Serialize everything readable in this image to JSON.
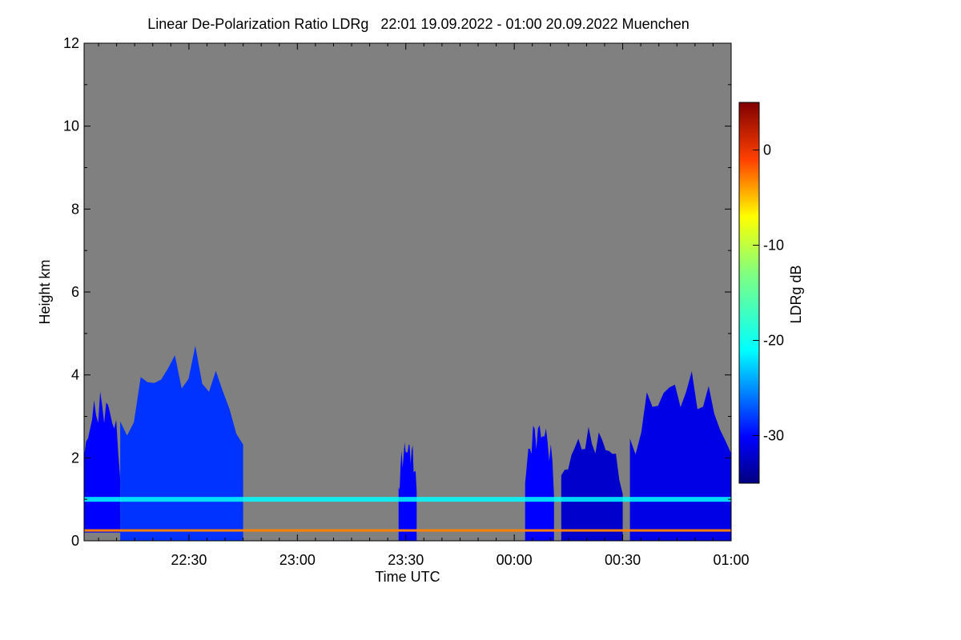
{
  "chart_data": {
    "type": "heatmap",
    "title": "Linear De-Polarization Ratio LDRg   22:01 19.09.2022 - 01:00 20.09.2022 Muenchen",
    "xlabel": "Time UTC",
    "ylabel": "Height km",
    "colorbar_label": "LDRg dB",
    "x_range_minutes": [
      -29,
      150
    ],
    "y_range_km": [
      0,
      12
    ],
    "x_ticks": [
      {
        "label": "22:30",
        "minutes": 0
      },
      {
        "label": "23:00",
        "minutes": 30
      },
      {
        "label": "23:30",
        "minutes": 60
      },
      {
        "label": "00:00",
        "minutes": 90
      },
      {
        "label": "00:30",
        "minutes": 120
      },
      {
        "label": "01:00",
        "minutes": 150
      }
    ],
    "y_ticks": [
      {
        "label": "0",
        "value": 0
      },
      {
        "label": "2",
        "value": 2
      },
      {
        "label": "4",
        "value": 4
      },
      {
        "label": "6",
        "value": 6
      },
      {
        "label": "8",
        "value": 8
      },
      {
        "label": "10",
        "value": 10
      },
      {
        "label": "12",
        "value": 12
      }
    ],
    "colorbar_range_db": [
      -35,
      5
    ],
    "colorbar_ticks": [
      {
        "label": "0",
        "value": 0
      },
      {
        "label": "-10",
        "value": -10
      },
      {
        "label": "-20",
        "value": -20
      },
      {
        "label": "-30",
        "value": -30
      }
    ],
    "background_color": "#808080",
    "regions": [
      {
        "name": "early-cloud",
        "t_start": -29,
        "t_end": -19,
        "h_base": 0.2,
        "h_top": 3.2,
        "ldr_db": -30
      },
      {
        "name": "main-cloud",
        "t_start": -19,
        "t_end": 15,
        "h_base": 0.0,
        "h_top": 4.1,
        "ldr_db": -28
      },
      {
        "name": "cloud-2330",
        "t_start": 58,
        "t_end": 63,
        "h_base": 0.0,
        "h_top": 2.2,
        "ldr_db": -30
      },
      {
        "name": "cloud-0005",
        "t_start": 93,
        "t_end": 101,
        "h_base": 0.0,
        "h_top": 2.6,
        "ldr_db": -30
      },
      {
        "name": "cloud-0015",
        "t_start": 103,
        "t_end": 120,
        "h_base": 0.0,
        "h_top": 2.4,
        "ldr_db": -32
      },
      {
        "name": "cloud-0040",
        "t_start": 122,
        "t_end": 150,
        "h_base": 0.0,
        "h_top": 3.6,
        "ldr_db": -31
      }
    ],
    "boundary_layer": {
      "height_km": 1.0,
      "ldr_db": -20
    },
    "surface_layer": {
      "height_km": 0.25,
      "ldr_db": -5
    }
  }
}
